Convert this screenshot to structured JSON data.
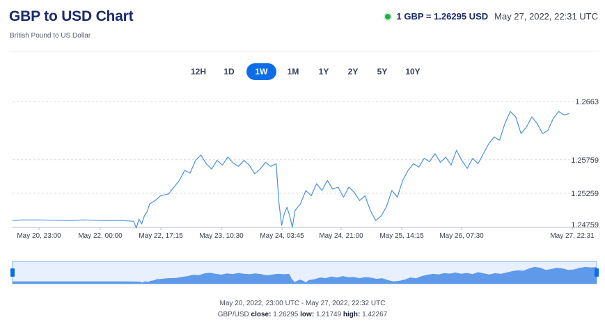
{
  "header": {
    "title": "GBP to USD Chart",
    "subtitle": "British Pound to US Dollar",
    "rate_label": "1 GBP = 1.26295 USD",
    "timestamp": "May 27, 2022, 22:31 UTC",
    "live_color": "#20b24a"
  },
  "tabs": [
    {
      "label": "12H",
      "active": false
    },
    {
      "label": "1D",
      "active": false
    },
    {
      "label": "1W",
      "active": true
    },
    {
      "label": "1M",
      "active": false
    },
    {
      "label": "1Y",
      "active": false
    },
    {
      "label": "2Y",
      "active": false
    },
    {
      "label": "5Y",
      "active": false
    },
    {
      "label": "10Y",
      "active": false
    }
  ],
  "chart_data": {
    "type": "line",
    "title": "",
    "xlabel": "",
    "ylabel": "",
    "line_color": "#4a90e2",
    "accent_color": "#0c6ee6",
    "x_ticks": [
      "May 20, 23:00",
      "May 22, 00:00",
      "May 22, 17:15",
      "May 23, 10:30",
      "May 24, 03:45",
      "May 24, 21:00",
      "May 25, 14:15",
      "May 26, 07:30",
      "May 27, 22:31"
    ],
    "y_ticks": [
      1.24759,
      1.25259,
      1.25759,
      1.2663
    ],
    "ylim": [
      1.24759,
      1.2663
    ],
    "grid": "horizontal dashed",
    "y_axis_position": "right",
    "series": [
      {
        "values": [
          [
            0,
            1.2485
          ],
          [
            4,
            1.2486
          ],
          [
            10,
            1.2486
          ],
          [
            22,
            1.2485
          ],
          [
            26,
            1.2486
          ],
          [
            34,
            1.2485
          ],
          [
            40,
            1.2485
          ],
          [
            45,
            1.2484
          ],
          [
            46,
            1.2474
          ],
          [
            47,
            1.2487
          ],
          [
            48,
            1.248
          ],
          [
            49,
            1.2492
          ],
          [
            50,
            1.2498
          ],
          [
            51,
            1.251
          ],
          [
            53,
            1.2515
          ],
          [
            55,
            1.2522
          ],
          [
            58,
            1.2525
          ],
          [
            60,
            1.2535
          ],
          [
            62,
            1.2545
          ],
          [
            64,
            1.256
          ],
          [
            66,
            1.2556
          ],
          [
            68,
            1.2575
          ],
          [
            70,
            1.2583
          ],
          [
            72,
            1.257
          ],
          [
            74,
            1.2562
          ],
          [
            76,
            1.2575
          ],
          [
            78,
            1.2568
          ],
          [
            80,
            1.258
          ],
          [
            82,
            1.2571
          ],
          [
            84,
            1.2566
          ],
          [
            86,
            1.2575
          ],
          [
            88,
            1.2568
          ],
          [
            90,
            1.2555
          ],
          [
            92,
            1.2562
          ],
          [
            94,
            1.2572
          ],
          [
            96,
            1.2566
          ],
          [
            98,
            1.257
          ],
          [
            99,
            1.2512
          ],
          [
            100,
            1.2478
          ],
          [
            101,
            1.2495
          ],
          [
            102,
            1.2505
          ],
          [
            103,
            1.2492
          ],
          [
            104,
            1.2475
          ],
          [
            105,
            1.25
          ],
          [
            107,
            1.251
          ],
          [
            109,
            1.253
          ],
          [
            111,
            1.2522
          ],
          [
            113,
            1.254
          ],
          [
            115,
            1.253
          ],
          [
            117,
            1.2545
          ],
          [
            119,
            1.2532
          ],
          [
            121,
            1.2535
          ],
          [
            123,
            1.252
          ],
          [
            125,
            1.2535
          ],
          [
            127,
            1.2527
          ],
          [
            129,
            1.2515
          ],
          [
            131,
            1.2522
          ],
          [
            133,
            1.25
          ],
          [
            135,
            1.2485
          ],
          [
            137,
            1.2492
          ],
          [
            139,
            1.2506
          ],
          [
            141,
            1.253
          ],
          [
            143,
            1.252
          ],
          [
            145,
            1.2545
          ],
          [
            147,
            1.256
          ],
          [
            149,
            1.257
          ],
          [
            151,
            1.2565
          ],
          [
            153,
            1.2578
          ],
          [
            155,
            1.2573
          ],
          [
            157,
            1.2585
          ],
          [
            159,
            1.2572
          ],
          [
            161,
            1.258
          ],
          [
            163,
            1.2568
          ],
          [
            165,
            1.259
          ],
          [
            167,
            1.2575
          ],
          [
            169,
            1.2563
          ],
          [
            171,
            1.2578
          ],
          [
            173,
            1.257
          ],
          [
            175,
            1.2585
          ],
          [
            177,
            1.26
          ],
          [
            179,
            1.261
          ],
          [
            181,
            1.2605
          ],
          [
            183,
            1.263
          ],
          [
            185,
            1.2648
          ],
          [
            187,
            1.264
          ],
          [
            189,
            1.2615
          ],
          [
            191,
            1.2625
          ],
          [
            193,
            1.264
          ],
          [
            195,
            1.263
          ],
          [
            197,
            1.2615
          ],
          [
            199,
            1.262
          ],
          [
            201,
            1.2638
          ],
          [
            203,
            1.2648
          ],
          [
            205,
            1.2643
          ],
          [
            207,
            1.2645
          ]
        ]
      }
    ],
    "x_domain": [
      0,
      207
    ]
  },
  "navigator": {
    "fill_color": "#4f8fe8",
    "range_text": "May 20, 2022, 23:00 UTC - May 27, 2022, 22:32 UTC",
    "stats_pair": "GBP/USD",
    "close_label": "close:",
    "close_value": "1.26295",
    "low_label": "low:",
    "low_value": "1.21749",
    "high_label": "high:",
    "high_value": "1.42267"
  }
}
